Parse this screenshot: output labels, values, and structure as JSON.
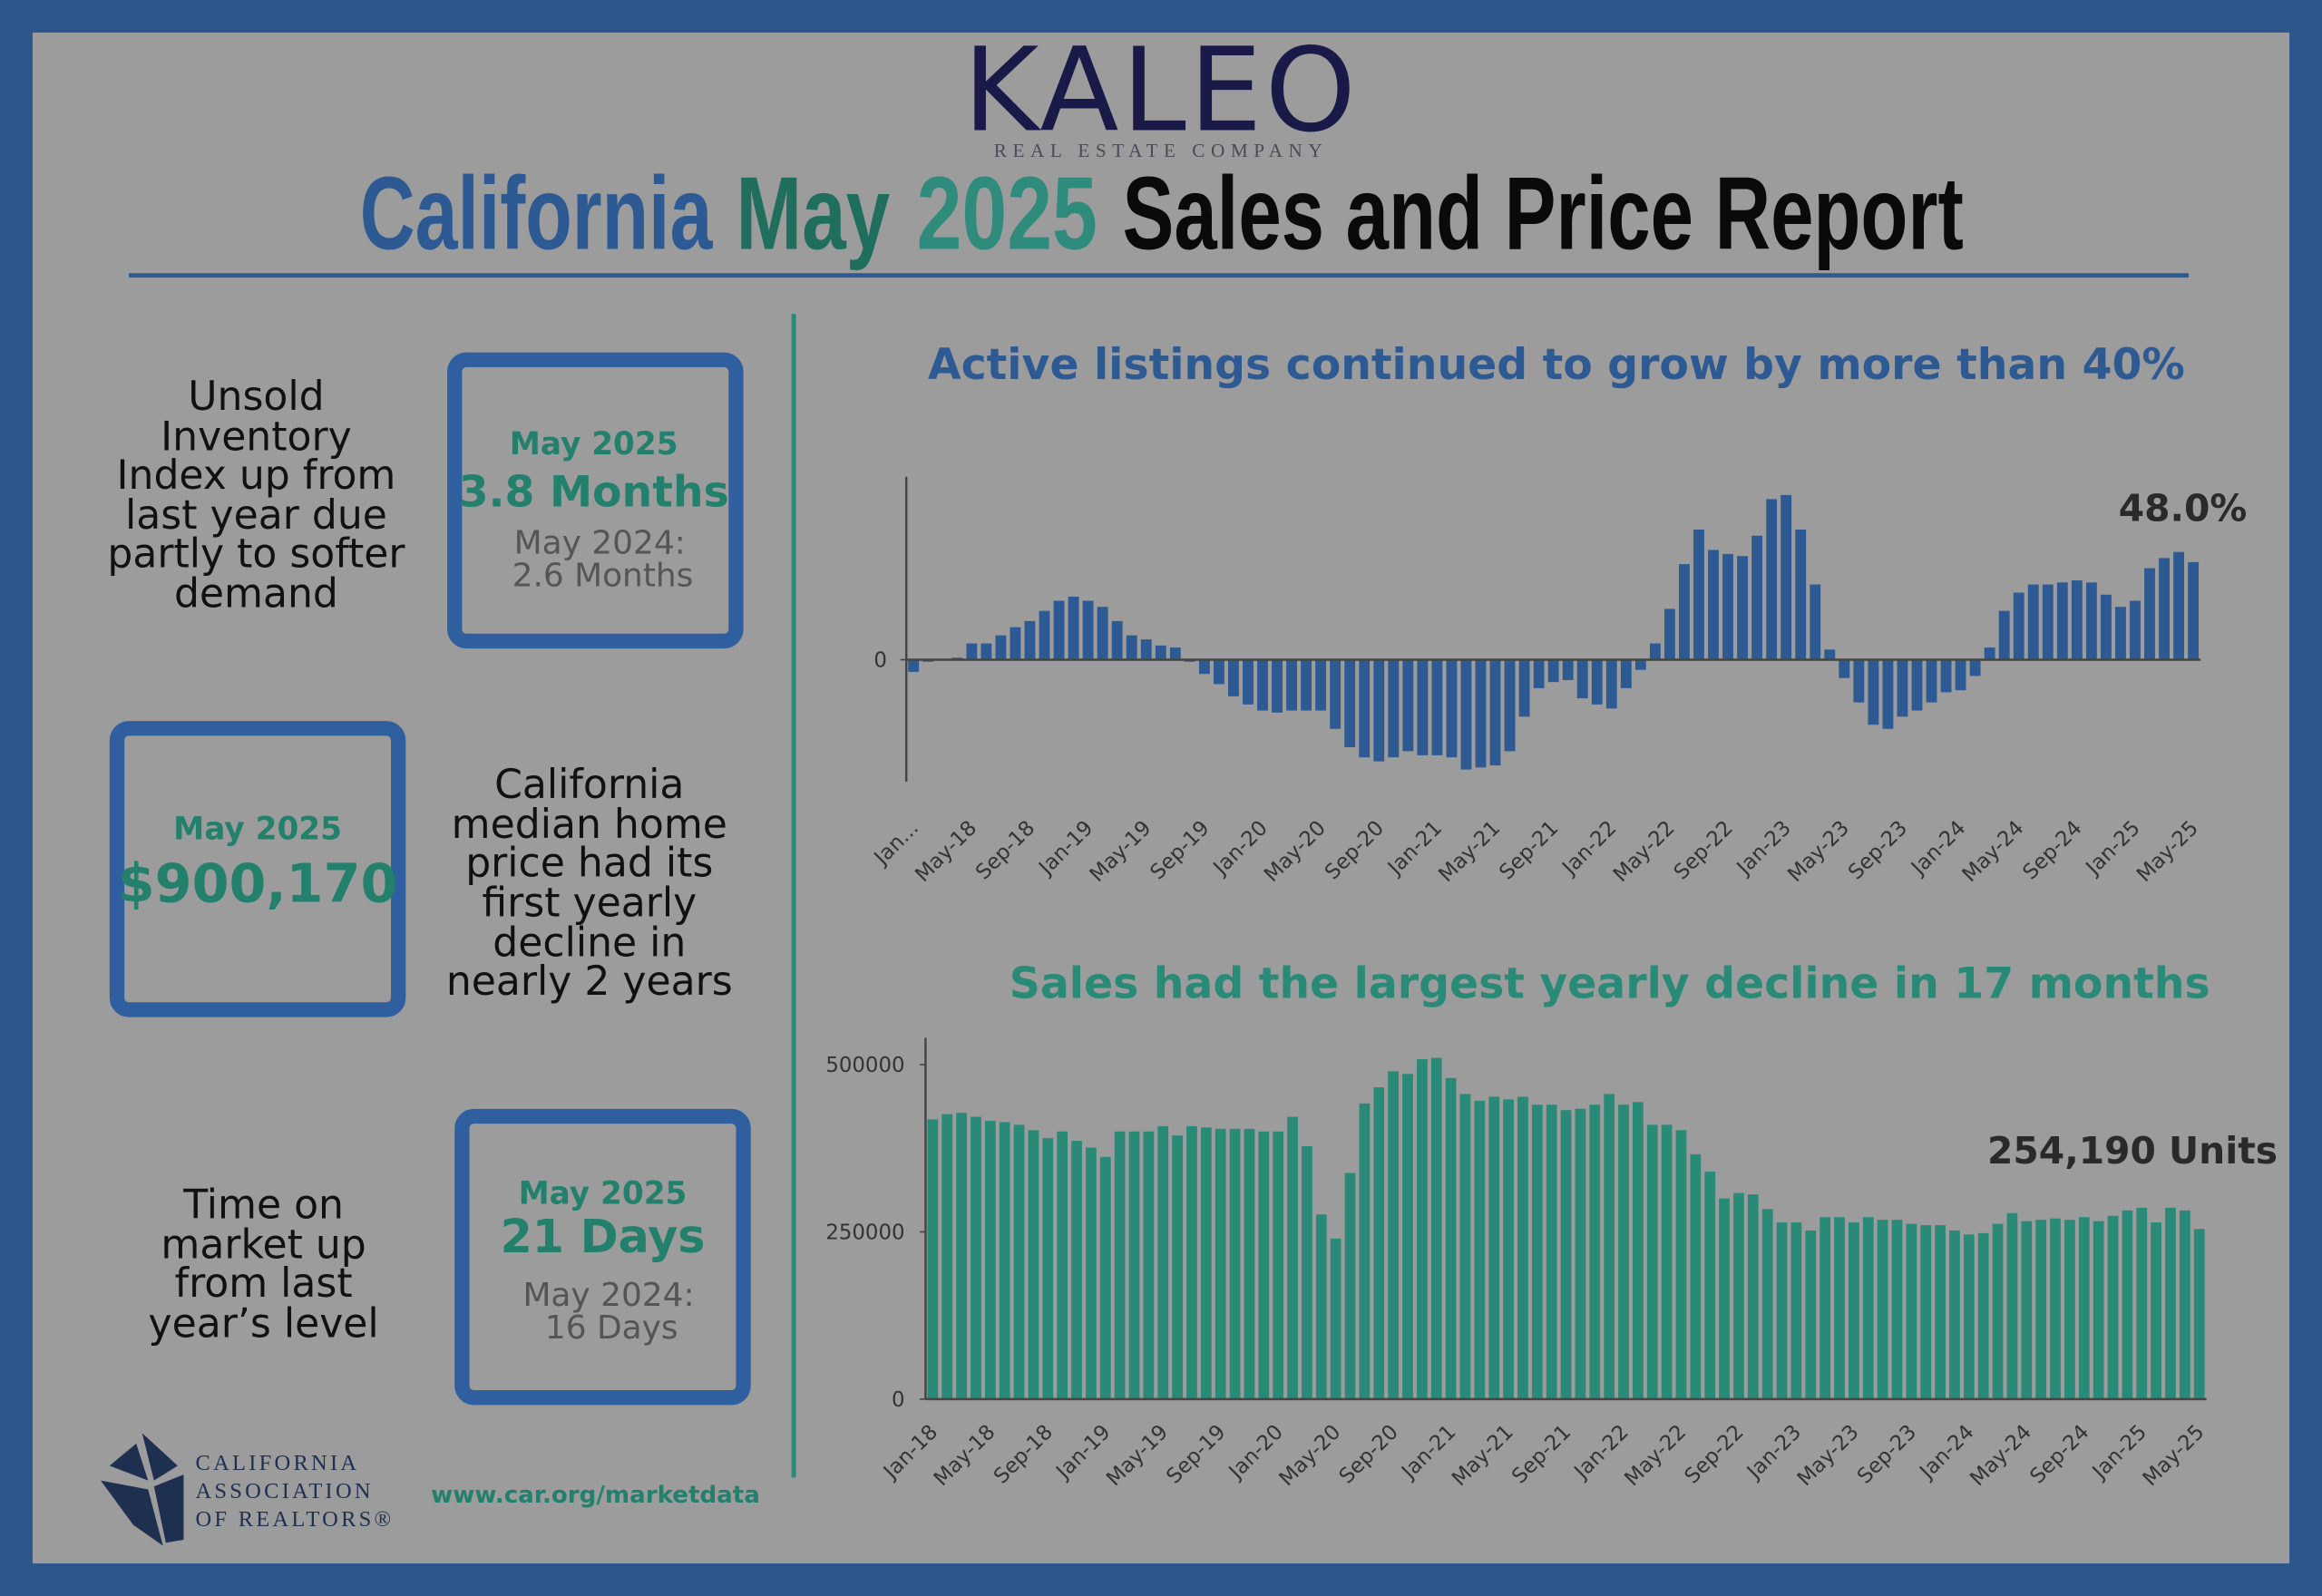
{
  "header": {
    "logo": "KALEO",
    "logo_tagline": "REAL ESTATE COMPANY",
    "title": [
      "California",
      "May",
      "2025",
      "Sales and Price Report"
    ]
  },
  "panels": [
    {
      "description": [
        "Unsold",
        "Inventory",
        "Index up from",
        "last year due",
        "partly to softer",
        "demand"
      ],
      "box": {
        "label": "May 2025",
        "value": "3.8 Months",
        "previous": [
          "May 2024:",
          "2.6 Months"
        ]
      }
    },
    {
      "description": [
        "California",
        "median home",
        "price had its",
        "first yearly",
        "decline in",
        "nearly 2 years"
      ],
      "box": {
        "label": "May 2025",
        "value": "$900,170"
      }
    },
    {
      "description": [
        "Time on",
        "market up",
        "from last",
        "year’s level"
      ],
      "box": {
        "label": "May 2025",
        "value": "21 Days",
        "previous": [
          "May 2024:",
          "16 Days"
        ]
      }
    }
  ],
  "footer": {
    "organization": [
      "CALIFORNIA",
      "ASSOCIATION",
      "OF REALTORS®"
    ],
    "url": "www.car.org/marketdata"
  },
  "chart_data": [
    {
      "type": "bar",
      "title": "Active listings continued to grow by more than 40%",
      "color": "#2e5a94",
      "title_color": "#2e5a94",
      "annotation": "48.0%",
      "categories": [
        "Jan...",
        null,
        null,
        null,
        "May-18",
        null,
        null,
        null,
        "Sep-18",
        null,
        null,
        null,
        "Jan-19",
        null,
        null,
        null,
        "May-19",
        null,
        null,
        null,
        "Sep-19",
        null,
        null,
        null,
        "Jan-20",
        null,
        null,
        null,
        "May-20",
        null,
        null,
        null,
        "Sep-20",
        null,
        null,
        null,
        "Jan-21",
        null,
        null,
        null,
        "May-21",
        null,
        null,
        null,
        "Sep-21",
        null,
        null,
        null,
        "Jan-22",
        null,
        null,
        null,
        "May-22",
        null,
        null,
        null,
        "Sep-22",
        null,
        null,
        null,
        "Jan-23",
        null,
        null,
        null,
        "May-23",
        null,
        null,
        null,
        "Sep-23",
        null,
        null,
        null,
        "Jan-24",
        null,
        null,
        null,
        "May-24",
        null,
        null,
        null,
        "Sep-24",
        null,
        null,
        null,
        "Jan-25",
        null,
        null,
        null,
        "May-25"
      ],
      "values": [
        -6,
        -1,
        0,
        1,
        8,
        8,
        12,
        16,
        19,
        24,
        29,
        31,
        29,
        26,
        19,
        12,
        10,
        7,
        6,
        -1,
        -7,
        -12,
        -18,
        -22,
        -25,
        -26,
        -25,
        -25,
        -25,
        -34,
        -43,
        -48,
        -50,
        -48,
        -45,
        -47,
        -47,
        -48,
        -54,
        -53,
        -52,
        -45,
        -28,
        -14,
        -11,
        -10,
        -19,
        -22,
        -24,
        -14,
        -5,
        8,
        25,
        47,
        64,
        54,
        52,
        51,
        61,
        79,
        81,
        64,
        37,
        5,
        -9,
        -21,
        -32,
        -34,
        -28,
        -25,
        -21,
        -16,
        -15,
        -8,
        6,
        24,
        33,
        37,
        37,
        38,
        39,
        38,
        32,
        26,
        29,
        45,
        50,
        53,
        48
      ],
      "ylim": [
        -60,
        90
      ],
      "yticks": [
        0
      ],
      "grid": false
    },
    {
      "type": "bar",
      "title": "Sales had the largest yearly decline in 17 months",
      "color": "#2a8a78",
      "title_color": "#2a8a78",
      "annotation": "254,190 Units",
      "categories": [
        "Jan-18",
        null,
        null,
        null,
        "May-18",
        null,
        null,
        null,
        "Sep-18",
        null,
        null,
        null,
        "Jan-19",
        null,
        null,
        null,
        "May-19",
        null,
        null,
        null,
        "Sep-19",
        null,
        null,
        null,
        "Jan-20",
        null,
        null,
        null,
        "May-20",
        null,
        null,
        null,
        "Sep-20",
        null,
        null,
        null,
        "Jan-21",
        null,
        null,
        null,
        "May-21",
        null,
        null,
        null,
        "Sep-21",
        null,
        null,
        null,
        "Jan-22",
        null,
        null,
        null,
        "May-22",
        null,
        null,
        null,
        "Sep-22",
        null,
        null,
        null,
        "Jan-23",
        null,
        null,
        null,
        "May-23",
        null,
        null,
        null,
        "Sep-23",
        null,
        null,
        null,
        "Jan-24",
        null,
        null,
        null,
        "May-24",
        null,
        null,
        null,
        "Sep-24",
        null,
        null,
        null,
        "Jan-25",
        null,
        null,
        null,
        "May-25"
      ],
      "values": [
        418000,
        426000,
        428000,
        422000,
        416000,
        414000,
        410000,
        402000,
        390000,
        400000,
        386000,
        376000,
        362000,
        400000,
        400000,
        400000,
        408000,
        394000,
        408000,
        406000,
        404000,
        404000,
        404000,
        400000,
        400000,
        422000,
        378000,
        276000,
        240000,
        338000,
        442000,
        466000,
        490000,
        486000,
        508000,
        510000,
        480000,
        456000,
        446000,
        452000,
        448000,
        452000,
        440000,
        440000,
        432000,
        434000,
        440000,
        456000,
        440000,
        444000,
        410000,
        410000,
        402000,
        366000,
        340000,
        300000,
        308000,
        306000,
        284000,
        264000,
        264000,
        252000,
        272000,
        272000,
        264000,
        272000,
        268000,
        268000,
        262000,
        260000,
        260000,
        252000,
        246000,
        248000,
        262000,
        278000,
        266000,
        268000,
        270000,
        268000,
        272000,
        266000,
        274000,
        282000,
        286000,
        264000,
        286000,
        282000,
        254190
      ],
      "ylim": [
        0,
        540000
      ],
      "yticks": [
        0,
        250000,
        500000
      ],
      "grid": false
    }
  ]
}
